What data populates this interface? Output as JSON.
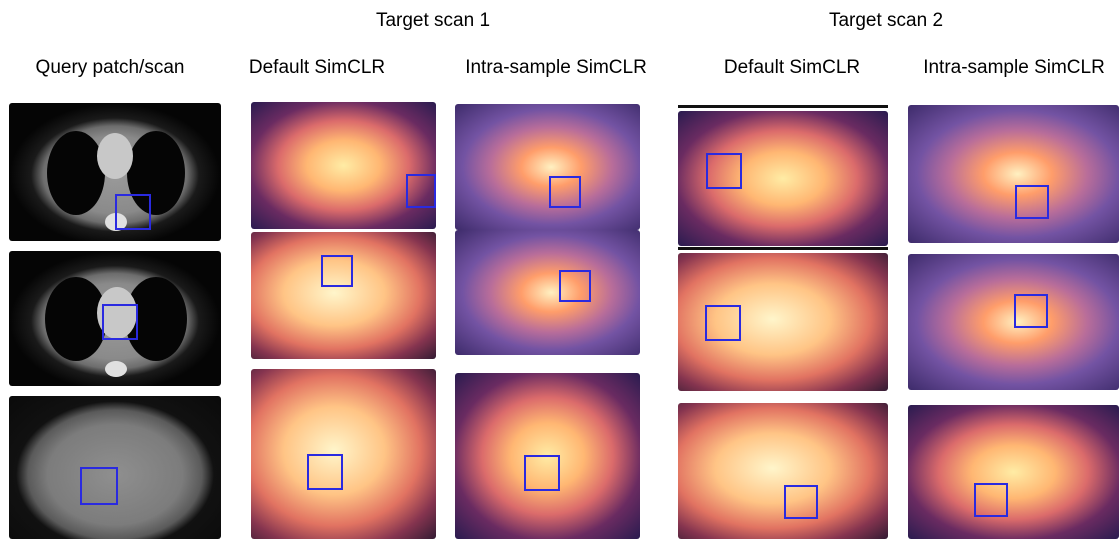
{
  "headers": {
    "target_scan_1": "Target scan 1",
    "target_scan_2": "Target scan 2"
  },
  "columns": {
    "query": "Query patch/scan",
    "default_1": "Default SimCLR",
    "intra_1": "Intra-sample SimCLR",
    "default_2": "Default SimCLR",
    "intra_2": "Intra-sample SimCLR"
  },
  "colors": {
    "bounding_box": "#2a2ae0",
    "background": "#ffffff"
  }
}
